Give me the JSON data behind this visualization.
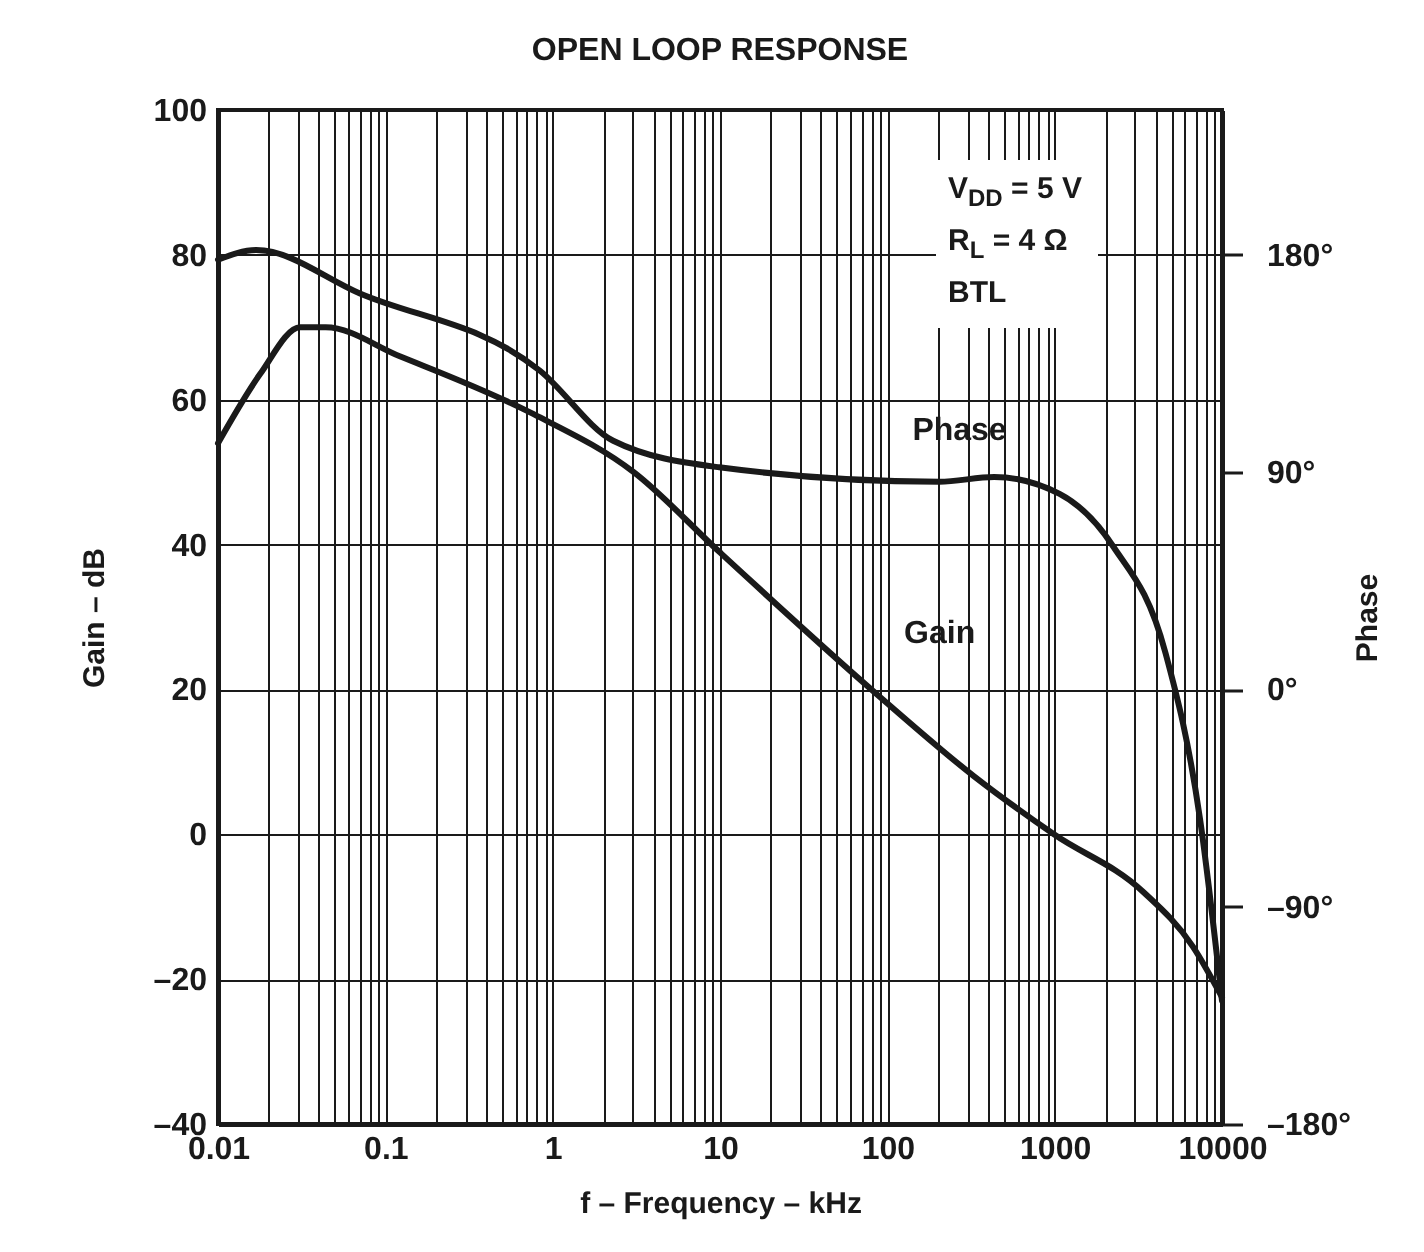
{
  "chart_data": {
    "type": "line",
    "title": "OPEN LOOP RESPONSE",
    "xlabel": "f – Frequency – kHz",
    "ylabel": "Gain – dB",
    "y2label": "Phase",
    "log": "x",
    "grid": true,
    "xlim": [
      0.01,
      10000
    ],
    "xticks": [
      0.01,
      0.1,
      1,
      10,
      100,
      1000,
      10000
    ],
    "ylim": [
      -40,
      100
    ],
    "yticks": [
      {
        "value": -40,
        "label": "–40"
      },
      {
        "value": -20,
        "label": "–20"
      },
      0,
      20,
      40,
      60,
      80,
      100
    ],
    "y2lim": [
      -180,
      240
    ],
    "y2ticks": [
      {
        "value": -180,
        "label": "–180°"
      },
      {
        "value": -90,
        "label": "–90°"
      },
      {
        "value": 0,
        "label": "0°"
      },
      {
        "value": 90,
        "label": "90°"
      },
      {
        "value": 180,
        "label": "180°"
      }
    ],
    "series": [
      {
        "name": "Gain",
        "color": "#1a1a1a",
        "x": [
          0.01,
          0.0178,
          0.031,
          0.044,
          0.122,
          0.77,
          3.05,
          9.9,
          90,
          330,
          990,
          3400,
          6700,
          10000
        ],
        "values": [
          54,
          63.5,
          70,
          70,
          66,
          58,
          50,
          39,
          19,
          8,
          0,
          -8,
          -15.5,
          -22.5
        ]
      },
      {
        "name": "Phase",
        "color": "#1a1a1a",
        "axis": "y2",
        "x": [
          0.01,
          0.0169,
          0.0705,
          0.84,
          2.3,
          9.9,
          205,
          435,
          1070,
          2250,
          4600,
          7400,
          10000
        ],
        "values": [
          178,
          182,
          164,
          132,
          103,
          92,
          86,
          88,
          81,
          59,
          15,
          -54,
          -129
        ]
      }
    ],
    "annotations": [
      "V$_{DD}$ = 5 V",
      "R$_{L}$ = 4 Ω",
      "BTL"
    ]
  }
}
